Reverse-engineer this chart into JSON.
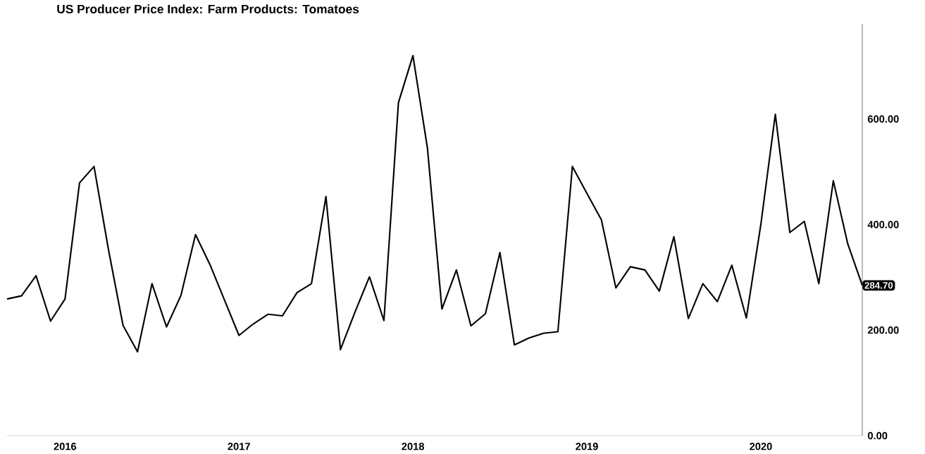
{
  "chart_data": {
    "type": "line",
    "title": "US Producer Price Index: Farm Products: Tomatoes",
    "x": [
      "2015-09",
      "2015-10",
      "2015-11",
      "2015-12",
      "2016-01",
      "2016-02",
      "2016-03",
      "2016-04",
      "2016-05",
      "2016-06",
      "2016-07",
      "2016-08",
      "2016-09",
      "2016-10",
      "2016-11",
      "2016-12",
      "2017-01",
      "2017-02",
      "2017-03",
      "2017-04",
      "2017-05",
      "2017-06",
      "2017-07",
      "2017-08",
      "2017-09",
      "2017-10",
      "2017-11",
      "2017-12",
      "2018-01",
      "2018-02",
      "2018-03",
      "2018-04",
      "2018-05",
      "2018-06",
      "2018-07",
      "2018-08",
      "2018-09",
      "2018-10",
      "2018-11",
      "2018-12",
      "2019-01",
      "2019-02",
      "2019-03",
      "2019-04",
      "2019-05",
      "2019-06",
      "2019-07",
      "2019-08",
      "2019-09",
      "2019-10",
      "2019-11",
      "2019-12",
      "2020-01",
      "2020-02",
      "2020-03",
      "2020-04",
      "2020-05",
      "2020-06",
      "2020-07",
      "2020-08"
    ],
    "values": [
      259,
      265,
      303,
      217,
      259,
      479,
      510,
      352,
      209,
      159,
      288,
      206,
      266,
      381,
      324,
      257,
      190,
      212,
      230,
      227,
      271,
      288,
      453,
      163,
      234,
      301,
      218,
      631,
      720,
      545,
      240,
      314,
      208,
      231,
      347,
      172,
      185,
      194,
      197,
      510,
      459,
      409,
      280,
      320,
      314,
      274,
      377,
      222,
      288,
      254,
      323,
      223,
      400,
      609,
      385,
      406,
      288,
      483,
      363,
      284.7
    ],
    "color": "#000000",
    "xlim": [
      "2015-09",
      "2020-08"
    ],
    "ylim": [
      0,
      780
    ],
    "xticks": [
      "2016",
      "2017",
      "2018",
      "2019",
      "2020"
    ],
    "yticks": [
      {
        "value": 0,
        "label": "0.00"
      },
      {
        "value": 200,
        "label": "200.00"
      },
      {
        "value": 400,
        "label": "400.00"
      },
      {
        "value": 600,
        "label": "600.00"
      }
    ],
    "annotations": [
      {
        "text": "284.70",
        "x": "2020-08",
        "y": 284.7
      }
    ]
  }
}
